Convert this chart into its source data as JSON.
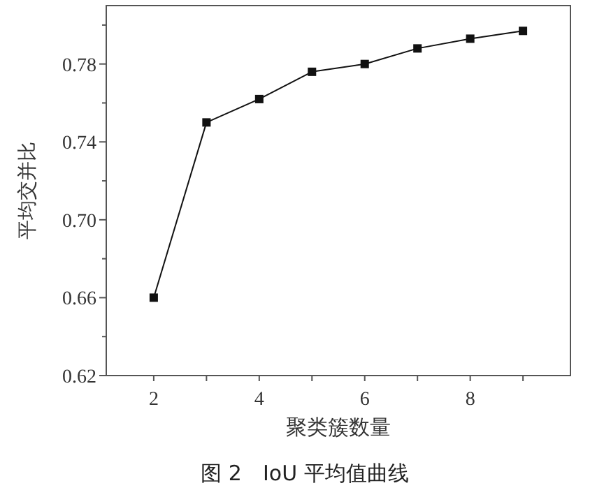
{
  "chart_data": {
    "type": "line",
    "xlabel": "聚类簇数量",
    "ylabel": "平均交并比",
    "annotations": [
      "图 2　IoU 平均值曲线"
    ],
    "x": [
      2,
      3,
      4,
      5,
      6,
      7,
      8,
      9
    ],
    "series": [
      {
        "color": "#111111",
        "values": [
          0.66,
          0.75,
          0.762,
          0.776,
          0.78,
          0.788,
          0.793,
          0.797
        ]
      }
    ],
    "xlim": [
      1.1,
      9.9
    ],
    "xticks": [
      2,
      {
        "value": 3,
        "label": null
      },
      4,
      {
        "value": 5,
        "label": null
      },
      6,
      {
        "value": 7,
        "label": null
      },
      8,
      {
        "value": 9,
        "label": null
      }
    ],
    "ylim": [
      0.62,
      0.81
    ],
    "yticks": [
      0.62,
      {
        "value": 0.64,
        "label": null
      },
      0.66,
      {
        "value": 0.68,
        "label": null
      },
      {
        "value": 0.7,
        "label": "0.70"
      },
      {
        "value": 0.72,
        "label": null
      },
      0.74,
      {
        "value": 0.76,
        "label": null
      },
      0.78,
      {
        "value": 0.8,
        "label": null
      }
    ],
    "marker": "square",
    "line_style": "solid",
    "grid": false
  }
}
